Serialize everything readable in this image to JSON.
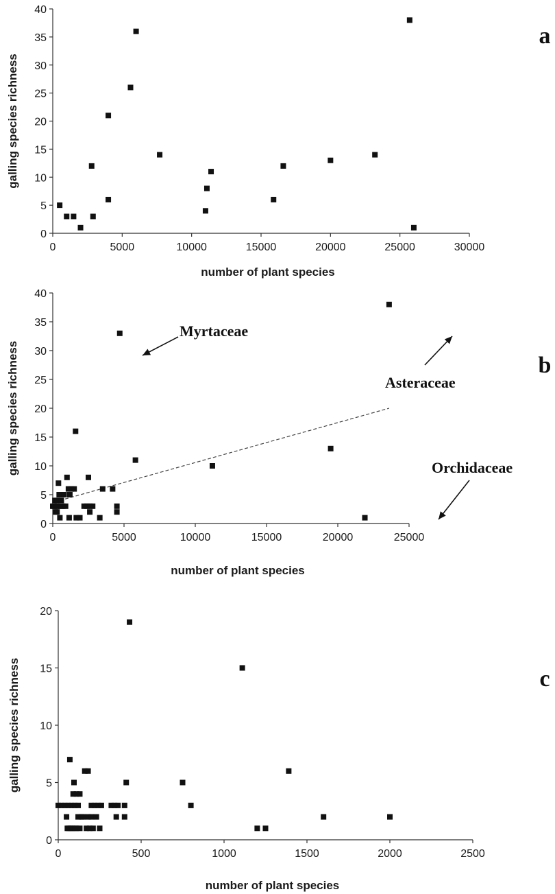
{
  "chart_data": [
    {
      "type": "scatter",
      "panel_letter": "a",
      "xlabel": "number of plant species",
      "ylabel": "galling species richness",
      "xlim": [
        0,
        30000
      ],
      "ylim": [
        0,
        40
      ],
      "xticks": [
        0,
        5000,
        10000,
        15000,
        20000,
        25000,
        30000
      ],
      "yticks": [
        0,
        5,
        10,
        15,
        20,
        25,
        30,
        35,
        40
      ],
      "points": [
        [
          500,
          5
        ],
        [
          1000,
          3
        ],
        [
          1500,
          3
        ],
        [
          2000,
          1
        ],
        [
          2800,
          12
        ],
        [
          2900,
          3
        ],
        [
          4000,
          21
        ],
        [
          4000,
          6
        ],
        [
          5600,
          26
        ],
        [
          6000,
          36
        ],
        [
          7700,
          14
        ],
        [
          11000,
          4
        ],
        [
          11100,
          8
        ],
        [
          11400,
          11
        ],
        [
          15900,
          6
        ],
        [
          16600,
          12
        ],
        [
          20000,
          13
        ],
        [
          23200,
          14
        ],
        [
          25700,
          38
        ],
        [
          26000,
          1
        ]
      ]
    },
    {
      "type": "scatter",
      "panel_letter": "b",
      "xlabel": "number of plant species",
      "ylabel": "galling species richness",
      "xlim": [
        0,
        25000
      ],
      "ylim": [
        0,
        40
      ],
      "xticks": [
        0,
        5000,
        10000,
        15000,
        20000,
        25000
      ],
      "yticks": [
        0,
        5,
        10,
        15,
        20,
        25,
        30,
        35,
        40
      ],
      "points": [
        [
          0,
          3
        ],
        [
          100,
          3
        ],
        [
          150,
          4
        ],
        [
          200,
          2
        ],
        [
          250,
          3
        ],
        [
          300,
          2
        ],
        [
          300,
          4
        ],
        [
          350,
          3
        ],
        [
          400,
          7
        ],
        [
          450,
          5
        ],
        [
          500,
          1
        ],
        [
          550,
          3
        ],
        [
          600,
          4
        ],
        [
          650,
          5
        ],
        [
          700,
          3
        ],
        [
          800,
          5
        ],
        [
          900,
          3
        ],
        [
          1000,
          8
        ],
        [
          1100,
          6
        ],
        [
          1150,
          1
        ],
        [
          1200,
          5
        ],
        [
          1300,
          6
        ],
        [
          1500,
          6
        ],
        [
          1600,
          16
        ],
        [
          1650,
          1
        ],
        [
          1900,
          1
        ],
        [
          2200,
          3
        ],
        [
          2400,
          3
        ],
        [
          2500,
          8
        ],
        [
          2600,
          2
        ],
        [
          2600,
          3
        ],
        [
          2800,
          3
        ],
        [
          3300,
          1
        ],
        [
          3500,
          6
        ],
        [
          4200,
          6
        ],
        [
          4500,
          3
        ],
        [
          4500,
          2
        ],
        [
          4700,
          33
        ],
        [
          5800,
          11
        ],
        [
          11200,
          10
        ],
        [
          19500,
          13
        ],
        [
          21900,
          1
        ],
        [
          23600,
          38
        ]
      ],
      "trendline": {
        "style": "dashed",
        "from": [
          500,
          4
        ],
        "to": [
          23600,
          20
        ]
      },
      "annotations": [
        {
          "text": "Myrtaceae"
        },
        {
          "text": "Asteraceae"
        },
        {
          "text": "Orchidaceae"
        }
      ]
    },
    {
      "type": "scatter",
      "panel_letter": "c",
      "xlabel": "number of plant species",
      "ylabel": "galling species richness",
      "xlim": [
        0,
        2500
      ],
      "ylim": [
        0,
        20
      ],
      "xticks": [
        0,
        500,
        1000,
        1500,
        2000,
        2500
      ],
      "yticks": [
        0,
        5,
        10,
        15,
        20
      ],
      "points": [
        [
          0,
          3
        ],
        [
          20,
          3
        ],
        [
          40,
          3
        ],
        [
          50,
          2
        ],
        [
          55,
          1
        ],
        [
          60,
          3
        ],
        [
          65,
          1
        ],
        [
          70,
          7
        ],
        [
          75,
          1
        ],
        [
          80,
          3
        ],
        [
          85,
          1
        ],
        [
          90,
          4
        ],
        [
          95,
          5
        ],
        [
          100,
          1
        ],
        [
          100,
          3
        ],
        [
          110,
          1
        ],
        [
          110,
          4
        ],
        [
          120,
          3
        ],
        [
          120,
          2
        ],
        [
          130,
          1
        ],
        [
          130,
          4
        ],
        [
          140,
          2
        ],
        [
          150,
          2
        ],
        [
          160,
          6
        ],
        [
          170,
          1
        ],
        [
          180,
          6
        ],
        [
          180,
          2
        ],
        [
          190,
          1
        ],
        [
          200,
          3
        ],
        [
          200,
          2
        ],
        [
          210,
          1
        ],
        [
          220,
          3
        ],
        [
          230,
          2
        ],
        [
          240,
          3
        ],
        [
          250,
          1
        ],
        [
          260,
          3
        ],
        [
          320,
          3
        ],
        [
          340,
          3
        ],
        [
          350,
          2
        ],
        [
          360,
          3
        ],
        [
          400,
          3
        ],
        [
          400,
          2
        ],
        [
          410,
          5
        ],
        [
          430,
          19
        ],
        [
          750,
          5
        ],
        [
          800,
          3
        ],
        [
          1110,
          15
        ],
        [
          1200,
          1
        ],
        [
          1250,
          1
        ],
        [
          1390,
          6
        ],
        [
          1600,
          2
        ],
        [
          2000,
          2
        ]
      ]
    }
  ]
}
